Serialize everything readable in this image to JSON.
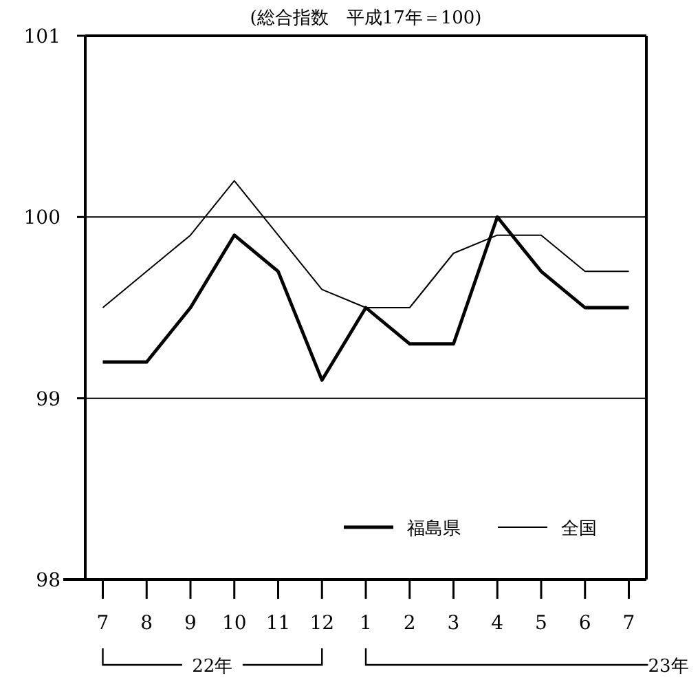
{
  "chart_data": {
    "type": "line",
    "title": "(総合指数　平成17年＝100)",
    "categories": [
      "7",
      "8",
      "9",
      "10",
      "11",
      "12",
      "1",
      "2",
      "3",
      "4",
      "5",
      "6",
      "7"
    ],
    "series": [
      {
        "name": "福島県",
        "color": "#000000",
        "values": [
          99.2,
          99.2,
          99.5,
          99.9,
          99.7,
          99.1,
          99.5,
          99.3,
          99.3,
          100.0,
          99.7,
          99.5,
          99.5
        ]
      },
      {
        "name": "全国",
        "color": "#000000",
        "values": [
          99.5,
          99.7,
          99.9,
          100.2,
          99.9,
          99.6,
          99.5,
          99.5,
          99.8,
          99.9,
          99.9,
          99.7,
          99.7
        ]
      }
    ],
    "ylim": [
      98,
      101
    ],
    "yticks": [
      98,
      99,
      100,
      101
    ],
    "grid": "y",
    "legend": "bottom right",
    "marker": "none",
    "line_style": "solid",
    "annotations": [
      "22年",
      "23年"
    ]
  }
}
